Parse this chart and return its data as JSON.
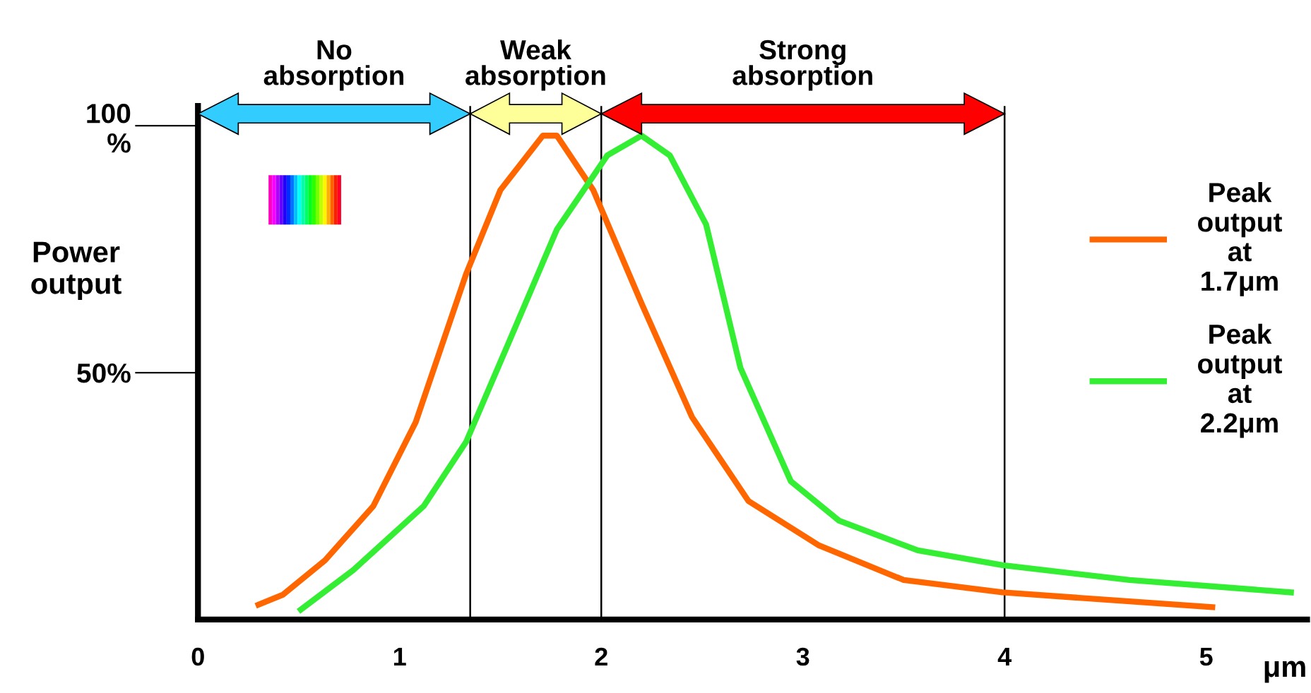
{
  "chart_data": {
    "type": "line",
    "ylabel": "Power\noutput",
    "xlabel": "μm",
    "xlim": [
      0,
      5.5
    ],
    "ylim": [
      0,
      104
    ],
    "xticks": [
      0,
      1,
      2,
      3,
      4,
      5
    ],
    "yticks": [
      {
        "value": 50,
        "label": "50%"
      },
      {
        "value": 100,
        "label": "100\n%"
      }
    ],
    "grid": false,
    "legend": "top right",
    "marker": "none",
    "line_style": "solid",
    "series": [
      {
        "name": "Peak\noutput\nat\n1.7μm",
        "color": "#ff6600",
        "x": [
          0.3,
          0.42,
          0.63,
          0.87,
          1.08,
          1.33,
          1.5,
          1.71,
          1.78,
          1.96,
          2.2,
          2.45,
          2.73,
          3.08,
          3.5,
          3.99,
          5.03
        ],
        "values": [
          3,
          5,
          12,
          23,
          40,
          70,
          87,
          98,
          98,
          87,
          64,
          41,
          24,
          15,
          8,
          5.5,
          2.5
        ]
      },
      {
        "name": "Peak\noutput\nat\n2.2μm",
        "color": "#33ee33",
        "x": [
          0.51,
          0.77,
          1.12,
          1.33,
          1.54,
          1.78,
          2.03,
          2.2,
          2.34,
          2.52,
          2.69,
          2.94,
          3.18,
          3.57,
          3.99,
          4.62,
          5.42
        ],
        "values": [
          2,
          10,
          23,
          36,
          56,
          79,
          94,
          98,
          94,
          80,
          51,
          28,
          20,
          14,
          11,
          8,
          5.5
        ]
      }
    ],
    "ref_lines": [
      {
        "axis": "x",
        "value": 1.35,
        "color": "#000000"
      },
      {
        "axis": "x",
        "value": 2,
        "color": "#000000"
      },
      {
        "axis": "x",
        "value": 4,
        "color": "#000000"
      }
    ],
    "annotations": [
      "No\nabsorption",
      "Weak\nabsorption",
      "Strong\nabsorption"
    ]
  }
}
